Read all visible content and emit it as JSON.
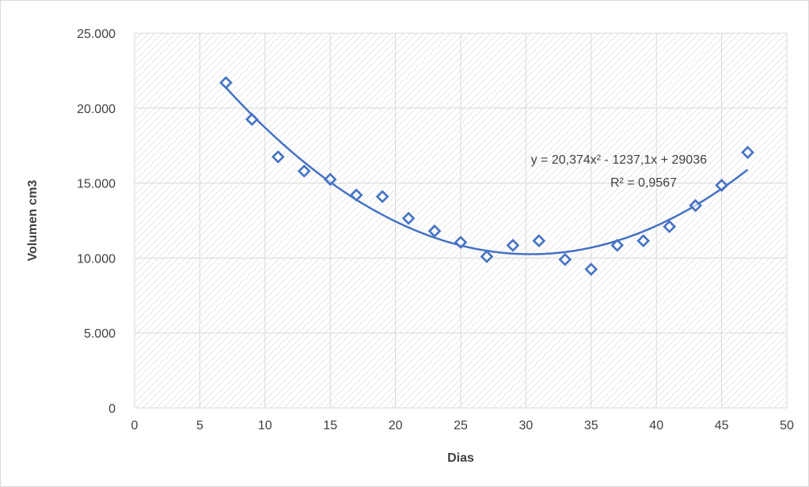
{
  "chart_data": {
    "type": "scatter",
    "title": "",
    "xlabel": "Dias",
    "ylabel": "Volumen cm3",
    "xlim": [
      0,
      50
    ],
    "ylim": [
      0,
      25000
    ],
    "x_ticks": [
      0,
      5,
      10,
      15,
      20,
      25,
      30,
      35,
      40,
      45,
      50
    ],
    "x_tick_labels": [
      "0",
      "5",
      "10",
      "15",
      "20",
      "25",
      "30",
      "35",
      "40",
      "45",
      "50"
    ],
    "y_ticks": [
      0,
      5000,
      10000,
      15000,
      20000,
      25000
    ],
    "y_tick_labels": [
      "0",
      "5.000",
      "10.000",
      "15.000",
      "20.000",
      "25.000"
    ],
    "grid": true,
    "series": [
      {
        "marker": "diamond-open",
        "color": "#4472c4",
        "x": [
          7,
          9,
          11,
          13,
          15,
          17,
          19,
          21,
          23,
          25,
          27,
          29,
          31,
          33,
          35,
          37,
          39,
          41,
          43,
          45,
          47
        ],
        "y": [
          21700,
          19250,
          16750,
          15800,
          15250,
          14200,
          14100,
          12650,
          11800,
          11050,
          10100,
          10850,
          11150,
          9900,
          9250,
          10850,
          11150,
          12100,
          13500,
          14850,
          17050
        ]
      }
    ],
    "trendline": {
      "type": "polynomial",
      "coefficients": [
        20.374,
        -1237.1,
        29036
      ],
      "x_range": [
        7,
        47
      ],
      "color": "#4472c4"
    },
    "annotations": {
      "equation": "y = 20,374x² - 1237,1x + 29036",
      "r_squared": "R² = 0,9567"
    }
  }
}
